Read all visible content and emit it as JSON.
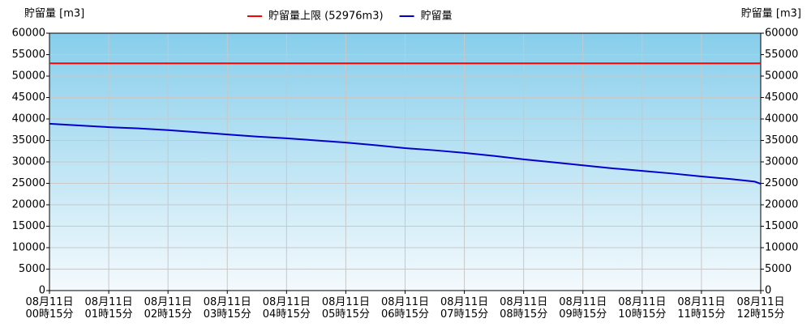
{
  "chart_data": {
    "type": "line",
    "y_title": "貯留量 [m3]",
    "y2_title": "貯留量 [m3]",
    "xlim": [
      0,
      12
    ],
    "xticks": [
      {
        "value": 0,
        "label": [
          "08月11日",
          "00時15分"
        ]
      },
      {
        "value": 1,
        "label": [
          "08月11日",
          "01時15分"
        ]
      },
      {
        "value": 2,
        "label": [
          "08月11日",
          "02時15分"
        ]
      },
      {
        "value": 3,
        "label": [
          "08月11日",
          "03時15分"
        ]
      },
      {
        "value": 4,
        "label": [
          "08月11日",
          "04時15分"
        ]
      },
      {
        "value": 5,
        "label": [
          "08月11日",
          "05時15分"
        ]
      },
      {
        "value": 6,
        "label": [
          "08月11日",
          "06時15分"
        ]
      },
      {
        "value": 7,
        "label": [
          "08月11日",
          "07時15分"
        ]
      },
      {
        "value": 8,
        "label": [
          "08月11日",
          "08時15分"
        ]
      },
      {
        "value": 9,
        "label": [
          "08月11日",
          "09時15分"
        ]
      },
      {
        "value": 10,
        "label": [
          "08月11日",
          "10時15分"
        ]
      },
      {
        "value": 11,
        "label": [
          "08月11日",
          "11時15分"
        ]
      },
      {
        "value": 12,
        "label": [
          "08月11日",
          "12時15分"
        ]
      }
    ],
    "ylim": [
      0,
      60000
    ],
    "yticks": [
      0,
      5000,
      10000,
      15000,
      20000,
      25000,
      30000,
      35000,
      40000,
      45000,
      50000,
      55000,
      60000
    ],
    "y2lim": [
      0,
      60000
    ],
    "y2ticks": [
      0,
      5000,
      10000,
      15000,
      20000,
      25000,
      30000,
      35000,
      40000,
      45000,
      50000,
      55000,
      60000
    ],
    "grid": true,
    "legend": "top",
    "x": [
      0,
      0.5,
      1,
      1.5,
      2,
      2.5,
      3,
      3.5,
      4,
      4.5,
      5,
      5.5,
      6,
      6.5,
      7,
      7.5,
      8,
      8.5,
      9,
      9.5,
      10,
      10.5,
      11,
      11.5,
      11.9,
      12
    ],
    "series": [
      {
        "name": "貯留量上限 (52976m3)",
        "color": "#ff0000",
        "limit": 52976
      },
      {
        "name": "貯留量",
        "color": "#0000cc",
        "values": [
          38900,
          38500,
          38100,
          37800,
          37400,
          36900,
          36400,
          35900,
          35500,
          35000,
          34500,
          33900,
          33200,
          32700,
          32100,
          31400,
          30600,
          29900,
          29200,
          28500,
          27900,
          27300,
          26600,
          26000,
          25400,
          24900
        ]
      }
    ]
  }
}
